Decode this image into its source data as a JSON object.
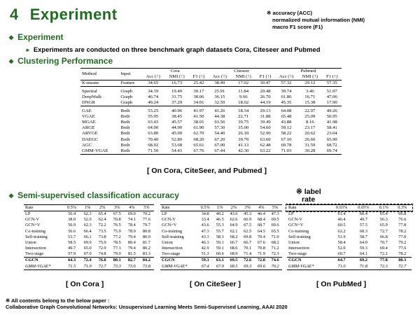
{
  "slide": {
    "number": "4",
    "title": "Experiment"
  },
  "abbrev": {
    "lines": [
      "※ accuracy (ACC)",
      "normalized mutual information (NMI)",
      "macro F1 score (F1)"
    ]
  },
  "sections": {
    "experiment": "Experiment",
    "experiment_note": "Experiments are conducted on three benchmark graph datasets Cora, Citeseer and Pubmed",
    "clustering": "Clustering Performance",
    "semi": "Semi-supervised  classification  accuracy"
  },
  "clustering_table": {
    "headers": {
      "method": "Method",
      "input": "Input",
      "cora": "Cora",
      "citeseer": "Citeseer",
      "pubmed": "Pubmed",
      "metrics": [
        "Acc (↑)",
        "NMI (↑)",
        "F1 (↑)",
        "Acc (↑)",
        "NMI (↑)",
        "F1 (↑)",
        "Acc (↑)",
        "NMI (↑)",
        "F1 (↑)"
      ]
    },
    "groups": [
      [
        {
          "method": "K-means",
          "input": "Feature",
          "vals": [
            "34.65",
            "16.73",
            "25.42",
            "38.49",
            "17.02",
            "30.47",
            "57.32",
            "29.12",
            "57.35"
          ]
        }
      ],
      [
        {
          "method": "Spectral",
          "input": "Graph",
          "vals": [
            "34.19",
            "19.49",
            "30.17",
            "25.91",
            "11.84",
            "29.48",
            "39.74",
            "3.46",
            "51.97"
          ]
        },
        {
          "method": "DeepWalk",
          "input": "Graph",
          "vals": [
            "46.74",
            "31.75",
            "38.06",
            "36.15",
            "9.66",
            "26.70",
            "61.86",
            "16.71",
            "47.06"
          ]
        },
        {
          "method": "DNGR",
          "input": "Graph",
          "vals": [
            "49.24",
            "37.29",
            "34.01",
            "32.59",
            "18.02",
            "44.19",
            "45.35",
            "15.38",
            "17.90"
          ]
        }
      ],
      [
        {
          "method": "GAE",
          "input": "Both",
          "vals": [
            "53.25",
            "40.96",
            "41.97",
            "41.26",
            "18.34",
            "29.13",
            "64.08",
            "22.97",
            "49.26"
          ]
        },
        {
          "method": "VGAE",
          "input": "Both",
          "vals": [
            "55.95",
            "38.45",
            "41.50",
            "44.38",
            "22.71",
            "31.88",
            "65.48",
            "25.09",
            "50.95"
          ]
        },
        {
          "method": "MGAE",
          "input": "Both",
          "vals": [
            "63.43",
            "45.57",
            "38.01",
            "63.56",
            "39.75",
            "39.49",
            "43.88",
            "8.16",
            "41.98"
          ]
        },
        {
          "method": "ARGE",
          "input": "Both",
          "vals": [
            "64.00",
            "44.90",
            "61.90",
            "57.30",
            "35.00",
            "54.60",
            "59.12",
            "23.17",
            "58.41"
          ]
        },
        {
          "method": "ARVGE",
          "input": "Both",
          "vals": [
            "63.80",
            "45.00",
            "62.70",
            "54.40",
            "26.10",
            "52.90",
            "58.22",
            "20.62",
            "23.04"
          ]
        },
        {
          "method": "DAEGC",
          "input": "Both",
          "vals": [
            "70.40",
            "52.80",
            "68.20",
            "67.20",
            "39.70",
            "63.60",
            "67.10",
            "26.60",
            "65.90"
          ]
        },
        {
          "method": "AGC",
          "input": "Both",
          "vals": [
            "68.92",
            "53.68",
            "65.61",
            "67.00",
            "41.13",
            "62.48",
            "69.78",
            "31.59",
            "68.72"
          ]
        },
        {
          "method": "GMM-VGAE",
          "input": "Both",
          "vals": [
            "71.50",
            "54.43",
            "67.76",
            "67.44",
            "42.30",
            "63.22",
            "71.03",
            "30.28",
            "69.74"
          ]
        }
      ]
    ]
  },
  "captions": {
    "clustering": "[ On Cora, CiteSeer, and Pubmed ]",
    "cora": "[ On Cora ]",
    "citeseer": "[ On CiteSeer ]",
    "pubmed": "[ On PubMed ]",
    "label_note_1": "※ label",
    "label_note_2": "rate"
  },
  "semi_tables": {
    "cora": {
      "headers": [
        "Rate",
        "0.5%",
        "1%",
        "2%",
        "3%",
        "4%",
        "5%"
      ],
      "rows": [
        [
          "LP",
          "56.4",
          "62.3",
          "65.4",
          "67.5",
          "69.0",
          "70.2"
        ],
        [
          "GCN-V",
          "38.0",
          "52.0",
          "62.4",
          "70.8",
          "74.1",
          "77.6"
        ],
        [
          "GCN+V",
          "50.9",
          "62.3",
          "72.2",
          "76.5",
          "78.4",
          "79.7"
        ],
        [
          "Co-training",
          "56.6",
          "66.4",
          "73.5",
          "75.9",
          "78.9",
          "80.8"
        ],
        [
          "Self-training",
          "53.7",
          "66.1",
          "73.8",
          "77.2",
          "79.4",
          "80.0"
        ],
        [
          "Union",
          "58.5",
          "69.9",
          "75.9",
          "78.5",
          "80.4",
          "81.7"
        ],
        [
          "Intersection",
          "49.7",
          "65.0",
          "72.9",
          "77.1",
          "79.4",
          "80.2"
        ],
        [
          "Two-stage",
          "57.9",
          "67.0",
          "74.8",
          "79.0",
          "81.5",
          "83.3"
        ]
      ],
      "best": [
        "CGCN",
        "64.3",
        "72.4",
        "76.8",
        "80.1",
        "82.7",
        "84.2"
      ],
      "ours": [
        "GMM-VGAE*",
        "71.5",
        "71.9",
        "72.7",
        "73.3",
        "73.6",
        "73.8"
      ]
    },
    "citeseer": {
      "headers": [
        "Rate",
        "0.5%",
        "1%",
        "2%",
        "3%",
        "4%",
        "5%"
      ],
      "rows": [
        [
          "LP",
          "34.8",
          "40.2",
          "43.6",
          "45.3",
          "46.4",
          "47.3"
        ],
        [
          "GCN-V",
          "33.4",
          "46.5",
          "62.6",
          "66.9",
          "68.4",
          "69.5"
        ],
        [
          "GCN+V",
          "43.6",
          "55.3",
          "64.9",
          "67.5",
          "68.7",
          "69.6"
        ],
        [
          "Co-training",
          "47.3",
          "55.7",
          "62.1",
          "62.5",
          "64.5",
          "65.5"
        ],
        [
          "Self-training",
          "43.3",
          "58.1",
          "68.2",
          "69.8",
          "70.4",
          "71.0"
        ],
        [
          "Union",
          "46.3",
          "59.1",
          "66.7",
          "66.7",
          "67.6",
          "68.2"
        ],
        [
          "Intersection",
          "42.9",
          "59.1",
          "68.6",
          "70.1",
          "70.8",
          "71.2"
        ],
        [
          "Two-stage",
          "51.3",
          "60.6",
          "68.9",
          "71.4",
          "71.9",
          "72.3"
        ]
      ],
      "best": [
        "CGCN",
        "59.3",
        "63.1",
        "69.5",
        "72.6",
        "72.8",
        "74.6"
      ],
      "ours": [
        "GMM-VGAE*",
        "67.4",
        "67.9",
        "68.5",
        "69.3",
        "69.6",
        "70.2"
      ]
    },
    "pubmed": {
      "headers": [
        "Rate",
        "0.03%",
        "0.05%",
        "0.1%",
        "0.3%"
      ],
      "rows": [
        [
          "LP",
          "61.4",
          "66.4",
          "65.4",
          "66.8"
        ],
        [
          "GCN-V",
          "46.4",
          "49.7",
          "56.3",
          "76.6"
        ],
        [
          "GCN+V",
          "60.5",
          "57.5",
          "65.9",
          "77.8"
        ],
        [
          "Co-training",
          "62.2",
          "68.3",
          "72.7",
          "78.2"
        ],
        [
          "Self-training",
          "51.9",
          "58.7",
          "66.8",
          "77.0"
        ],
        [
          "Union",
          "58.4",
          "64.0",
          "70.7",
          "79.2"
        ],
        [
          "Intersection",
          "52.0",
          "59.3",
          "69.4",
          "77.6"
        ],
        [
          "Two-stage",
          "60.7",
          "64.1",
          "72.2",
          "78.2"
        ]
      ],
      "best": [
        "CGCN",
        "64.7",
        "69.2",
        "77.8",
        "80.3"
      ],
      "ours": [
        "GMM-VGAE*",
        "71.0",
        "71.8",
        "72.3",
        "72.7"
      ]
    }
  },
  "footer": {
    "line1": "※ All contents belong to the below paper :",
    "line2": "Collaborative Graph Convolutional Networks: Unsupervised Learning Meets Semi-Supervised Learning, AAAI 2020"
  }
}
